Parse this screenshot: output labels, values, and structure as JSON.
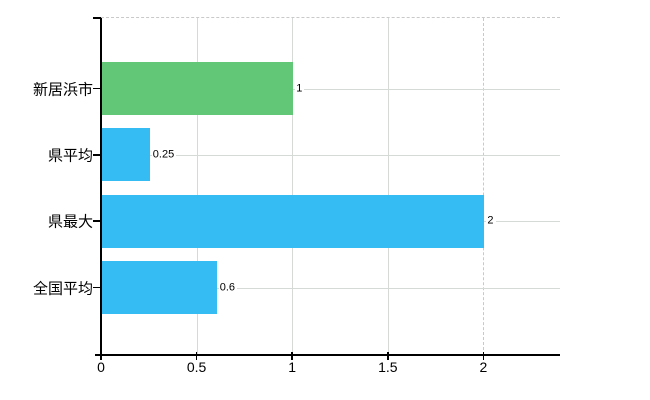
{
  "chart": {
    "title": "",
    "background_color": "#ffffff",
    "axis_color": "#000000",
    "grid_color": "#d6dad6",
    "dashed_grid_color": "#c9c9c9",
    "text_color": "#000000"
  },
  "chart_data": {
    "type": "bar",
    "orientation": "horizontal",
    "title": "",
    "xlabel": "",
    "ylabel": "",
    "legend": null,
    "grid": "on",
    "categories": [
      "新居浜市",
      "県平均",
      "県最大",
      "全国平均"
    ],
    "values": [
      1,
      0.25,
      2,
      0.6
    ],
    "value_labels": [
      "1",
      "0.25",
      "2",
      "0.6"
    ],
    "bar_colors": [
      "#62c878",
      "#35bcf2",
      "#35bcf2",
      "#35bcf2"
    ],
    "x_tick_values": [
      0,
      0.5,
      1,
      1.5,
      2
    ],
    "x_tick_labels": [
      "0",
      "0.5",
      "1",
      "1.5",
      "2"
    ],
    "xlim": [
      0,
      2.4
    ],
    "grid_x_solid": [
      0.5,
      1,
      1.5
    ],
    "grid_x_dashed": [
      2
    ],
    "grid_top_dashed": true,
    "grid_y_on_category_centers": true
  }
}
